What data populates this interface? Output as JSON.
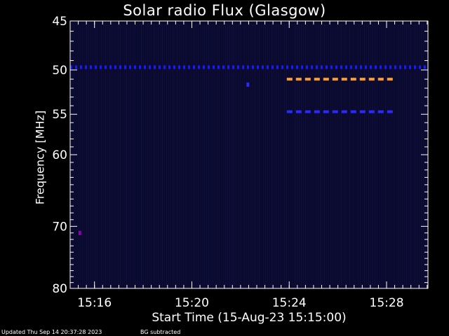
{
  "chart_data": {
    "type": "heatmap",
    "title": "Solar radio Flux (Glasgow)",
    "xlabel": "Start Time (15-Aug-23 15:15:00)",
    "ylabel": "Frequency [MHz]",
    "x_ticks": [
      "15:16",
      "15:20",
      "15:24",
      "15:28"
    ],
    "x_tick_minutes": [
      1,
      5,
      9,
      13
    ],
    "xlim_minutes": [
      0,
      14.7
    ],
    "y_ticks": [
      45,
      50,
      55,
      60,
      70,
      80
    ],
    "ylim": [
      45,
      80
    ],
    "y_scale": "log",
    "background_color": "#0a0a2e",
    "features": [
      {
        "name": "band",
        "freq_mhz": 49.7,
        "x_start_min": 0,
        "x_end_min": 14.7,
        "color": "#1a1aff",
        "style": "dotted"
      },
      {
        "name": "band",
        "freq_mhz": 51.0,
        "x_start_min": 8.9,
        "x_end_min": 13.5,
        "color": "#ff9a30",
        "style": "dashed"
      },
      {
        "name": "band",
        "freq_mhz": 54.7,
        "x_start_min": 8.9,
        "x_end_min": 13.5,
        "color": "#2a2aff",
        "style": "dashed"
      },
      {
        "name": "spot",
        "freq_mhz": 71.0,
        "x_min": 0.4,
        "color": "#8800aa"
      },
      {
        "name": "spot",
        "freq_mhz": 51.6,
        "x_min": 7.3,
        "color": "#2a2aff"
      }
    ]
  },
  "footer": {
    "updated": "Updated Thu Sep 14 20:37:28 2023",
    "note": "BG subtracted"
  }
}
